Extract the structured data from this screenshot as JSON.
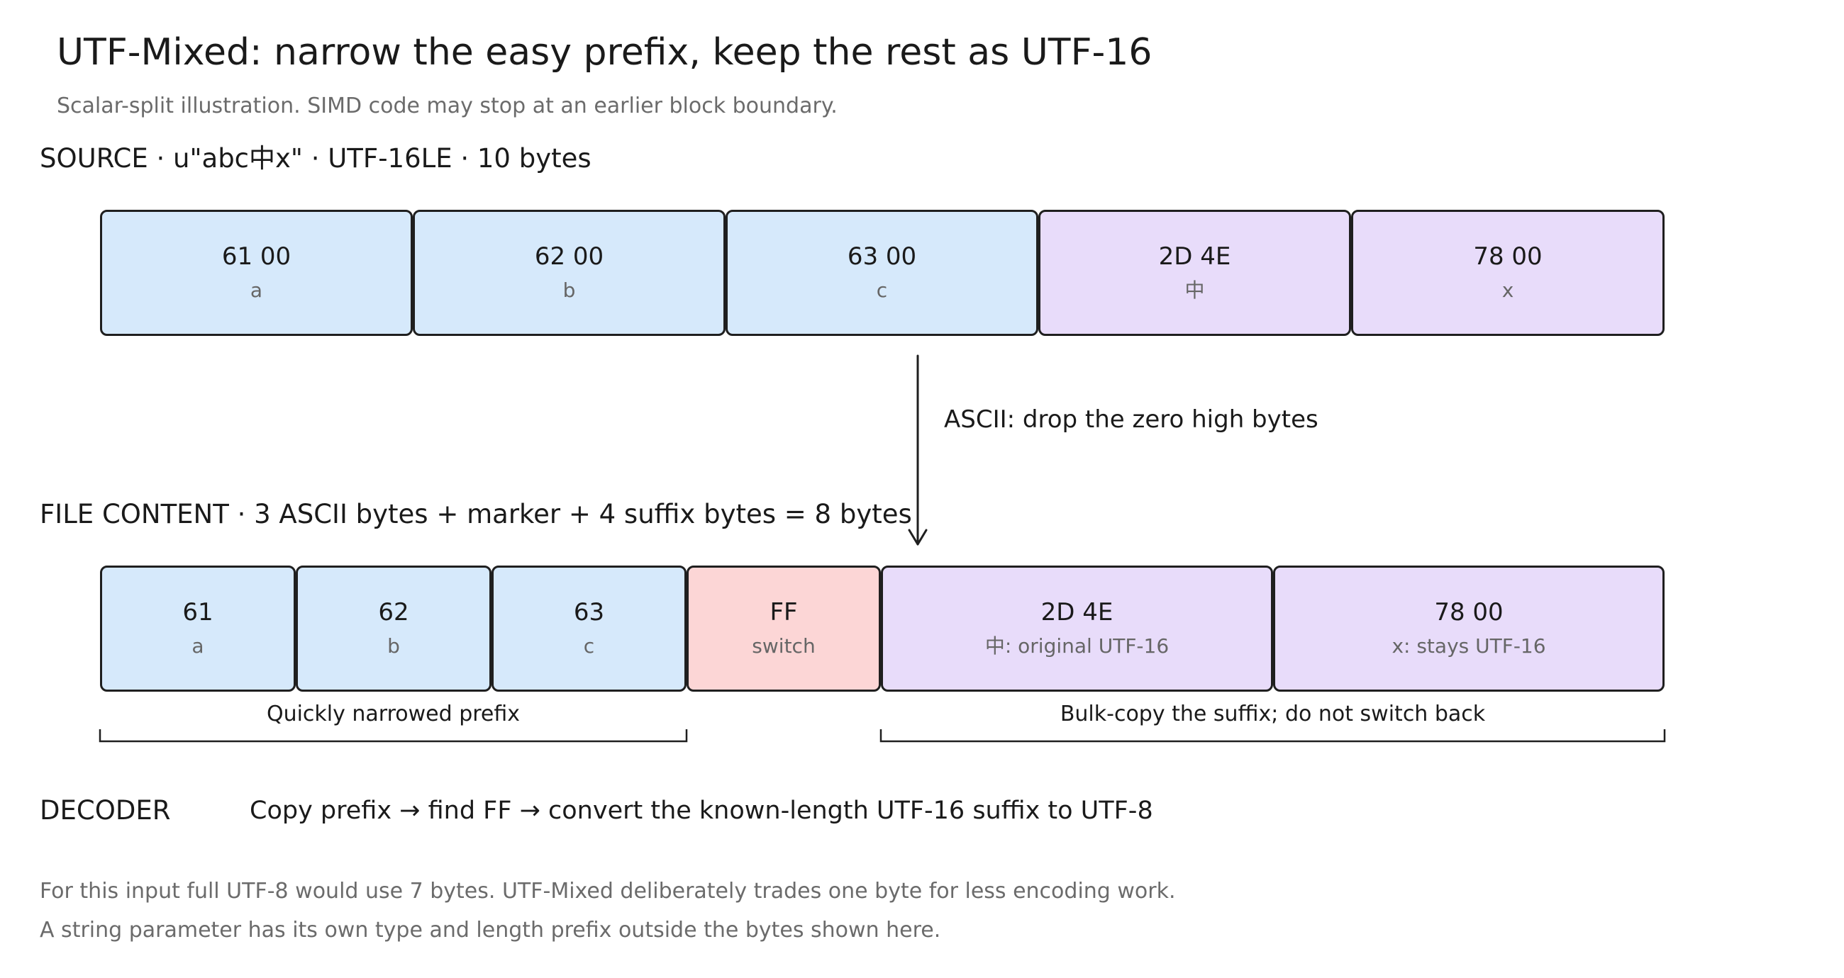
{
  "title": "UTF-Mixed: narrow the easy prefix, keep the rest as UTF-16",
  "subtitle": "Scalar-split illustration. SIMD code may stop at an earlier block boundary.",
  "source": {
    "label": "SOURCE · u\"abc中x\" · UTF-16LE · 10 bytes",
    "cells": [
      {
        "hex": "61 00",
        "char": "a",
        "kind": "ascii"
      },
      {
        "hex": "62 00",
        "char": "b",
        "kind": "ascii"
      },
      {
        "hex": "63 00",
        "char": "c",
        "kind": "ascii"
      },
      {
        "hex": "2D 4E",
        "char": "中",
        "kind": "cjk"
      },
      {
        "hex": "78 00",
        "char": "x",
        "kind": "cjk"
      }
    ]
  },
  "arrow_label": "ASCII: drop the zero high bytes",
  "file": {
    "label": "FILE CONTENT · 3 ASCII bytes + marker + 4 suffix bytes = 8 bytes",
    "cells": [
      {
        "hex": "61",
        "char": "a",
        "kind": "ascii"
      },
      {
        "hex": "62",
        "char": "b",
        "kind": "ascii"
      },
      {
        "hex": "63",
        "char": "c",
        "kind": "ascii"
      },
      {
        "hex": "FF",
        "char": "switch",
        "kind": "marker"
      },
      {
        "hex": "2D 4E",
        "char": "中: original UTF-16",
        "kind": "cjk"
      },
      {
        "hex": "78 00",
        "char": "x: stays UTF-16",
        "kind": "cjk"
      }
    ],
    "prefix_bracket": "Quickly narrowed prefix",
    "suffix_bracket": "Bulk-copy the suffix; do not switch back"
  },
  "decoder": {
    "label": "DECODER",
    "text": "Copy prefix → find FF → convert the known-length UTF-16 suffix to UTF-8"
  },
  "notes": [
    "For this input full UTF-8 would use 7 bytes. UTF-Mixed deliberately trades one byte for less encoding work.",
    "A string parameter has its own type and length prefix outside the bytes shown here."
  ],
  "colors": {
    "ascii": "#d6e9fb",
    "cjk": "#e8dcfa",
    "marker": "#fcd6d6",
    "stroke": "#1f1f1f"
  }
}
